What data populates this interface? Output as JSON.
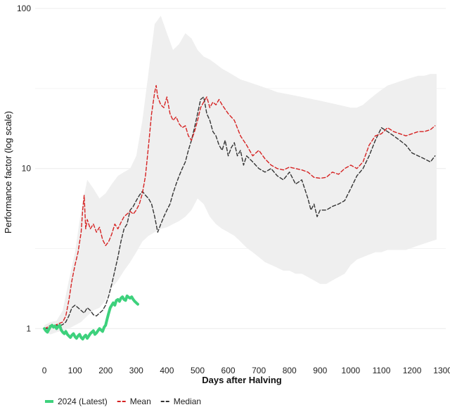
{
  "chart_data": {
    "type": "line",
    "xlabel": "Days after Halving",
    "ylabel": "Performance factor (log scale)",
    "xlim": [
      -30,
      1310
    ],
    "ylim": [
      0.65,
      100
    ],
    "yscale": "log",
    "x_ticks": [
      0,
      100,
      200,
      300,
      400,
      500,
      600,
      700,
      800,
      900,
      1000,
      1100,
      1200,
      1300
    ],
    "y_ticks": [
      1,
      10,
      100
    ],
    "grid": true,
    "legend_position": "bottom-left",
    "band": {
      "x": [
        0,
        20,
        40,
        60,
        80,
        100,
        120,
        140,
        160,
        180,
        200,
        220,
        240,
        260,
        280,
        300,
        320,
        340,
        360,
        380,
        400,
        420,
        440,
        460,
        480,
        500,
        520,
        540,
        560,
        580,
        600,
        620,
        640,
        660,
        680,
        700,
        720,
        740,
        760,
        780,
        800,
        820,
        840,
        860,
        880,
        900,
        920,
        940,
        960,
        980,
        1000,
        1020,
        1040,
        1060,
        1080,
        1100,
        1120,
        1140,
        1160,
        1180,
        1200,
        1220,
        1240,
        1260,
        1280
      ],
      "upper": [
        1.05,
        1.1,
        1.12,
        1.3,
        2.0,
        3.0,
        5.5,
        8.5,
        7.5,
        6.5,
        7.0,
        8.0,
        9.0,
        9.5,
        10.0,
        12.0,
        20.0,
        40.0,
        80.0,
        90.0,
        70.0,
        55.0,
        60.0,
        70.0,
        65.0,
        55.0,
        50.0,
        48.0,
        45.0,
        42.0,
        40.0,
        38.0,
        36.0,
        35.0,
        34.0,
        33.0,
        32.0,
        31.0,
        30.0,
        29.5,
        29.0,
        28.5,
        28.0,
        27.5,
        27.0,
        26.5,
        26.0,
        25.5,
        25.0,
        24.5,
        24.0,
        24.0,
        25.0,
        27.0,
        29.0,
        31.0,
        33.0,
        34.0,
        35.0,
        36.0,
        37.0,
        38.0,
        38.0,
        39.0,
        39.0
      ],
      "lower": [
        0.95,
        0.92,
        0.95,
        0.97,
        1.0,
        1.05,
        1.1,
        1.2,
        1.3,
        1.35,
        1.5,
        1.8,
        2.0,
        2.3,
        2.6,
        3.0,
        3.5,
        3.8,
        4.0,
        4.2,
        4.3,
        4.5,
        4.7,
        5.0,
        5.5,
        6.5,
        6.0,
        5.0,
        4.5,
        4.2,
        4.0,
        3.8,
        3.5,
        3.2,
        3.0,
        2.8,
        2.6,
        2.5,
        2.4,
        2.3,
        2.3,
        2.2,
        2.2,
        2.1,
        2.0,
        1.9,
        1.9,
        2.0,
        2.1,
        2.2,
        2.5,
        2.7,
        2.8,
        2.9,
        3.0,
        3.0,
        3.1,
        3.1,
        3.1,
        3.1,
        3.2,
        3.3,
        3.4,
        3.5,
        3.6
      ]
    },
    "series": [
      {
        "name": "2024 (Latest)",
        "color": "#3dd17c",
        "style": "solid",
        "x": [
          0,
          5,
          10,
          15,
          20,
          25,
          30,
          35,
          40,
          45,
          50,
          55,
          60,
          65,
          70,
          75,
          80,
          85,
          90,
          95,
          100,
          105,
          110,
          115,
          120,
          125,
          130,
          135,
          140,
          145,
          150,
          155,
          160,
          165,
          170,
          175,
          180,
          185,
          190,
          195,
          200,
          205,
          210,
          215,
          220,
          225,
          230,
          235,
          240,
          245,
          250,
          255,
          260,
          265,
          270,
          275,
          280,
          285,
          290,
          295,
          300,
          305
        ],
        "y": [
          1.0,
          0.97,
          0.95,
          0.99,
          1.03,
          1.05,
          1.02,
          1.04,
          1.0,
          1.03,
          1.05,
          0.98,
          0.95,
          0.93,
          0.96,
          0.92,
          0.9,
          0.88,
          0.91,
          0.93,
          0.89,
          0.87,
          0.9,
          0.92,
          0.88,
          0.86,
          0.89,
          0.91,
          0.87,
          0.9,
          0.93,
          0.95,
          0.97,
          0.92,
          0.94,
          0.97,
          1.0,
          0.98,
          0.96,
          1.02,
          1.05,
          1.15,
          1.25,
          1.35,
          1.4,
          1.45,
          1.4,
          1.5,
          1.52,
          1.48,
          1.55,
          1.58,
          1.52,
          1.5,
          1.6,
          1.57,
          1.55,
          1.58,
          1.52,
          1.48,
          1.45,
          1.42
        ]
      },
      {
        "name": "Mean",
        "color": "#d62222",
        "style": "dashed",
        "x": [
          0,
          10,
          20,
          30,
          40,
          50,
          60,
          70,
          80,
          90,
          100,
          110,
          120,
          125,
          130,
          135,
          140,
          150,
          160,
          170,
          180,
          190,
          200,
          210,
          220,
          230,
          240,
          250,
          260,
          270,
          280,
          290,
          300,
          310,
          320,
          330,
          340,
          350,
          360,
          365,
          370,
          380,
          390,
          400,
          410,
          420,
          430,
          440,
          450,
          460,
          470,
          480,
          490,
          500,
          510,
          520,
          530,
          540,
          550,
          560,
          570,
          580,
          600,
          620,
          640,
          660,
          680,
          700,
          720,
          740,
          760,
          780,
          800,
          820,
          840,
          860,
          880,
          900,
          920,
          940,
          960,
          980,
          1000,
          1020,
          1040,
          1060,
          1080,
          1100,
          1120,
          1140,
          1160,
          1180,
          1200,
          1220,
          1240,
          1260,
          1275
        ],
        "y": [
          1.0,
          1.02,
          1.05,
          1.03,
          1.06,
          1.08,
          1.1,
          1.2,
          1.5,
          2.0,
          2.5,
          3.0,
          4.0,
          5.5,
          6.8,
          4.2,
          4.8,
          4.2,
          4.5,
          4.0,
          4.3,
          3.6,
          3.3,
          3.5,
          3.9,
          4.5,
          4.2,
          4.6,
          5.0,
          5.2,
          5.4,
          5.2,
          5.5,
          6.0,
          7.0,
          9.0,
          14.0,
          22.0,
          30.0,
          33.0,
          28.0,
          25.0,
          24.0,
          28.0,
          22.0,
          20.0,
          21.0,
          19.0,
          18.0,
          18.5,
          16.0,
          15.0,
          17.0,
          20.0,
          24.0,
          26.0,
          28.0,
          24.0,
          26.0,
          25.0,
          27.0,
          25.0,
          22.0,
          20.0,
          16.0,
          14.0,
          12.0,
          13.0,
          11.5,
          10.5,
          10.0,
          9.8,
          10.2,
          10.0,
          9.8,
          9.5,
          8.8,
          8.7,
          8.8,
          9.5,
          9.2,
          10.0,
          10.5,
          10.0,
          11.0,
          14.0,
          16.0,
          16.5,
          18.0,
          17.0,
          16.5,
          16.0,
          16.5,
          17.0,
          17.0,
          17.5,
          18.5
        ]
      },
      {
        "name": "Median",
        "color": "#333333",
        "style": "dashed",
        "x": [
          0,
          10,
          20,
          30,
          40,
          50,
          60,
          70,
          80,
          90,
          100,
          110,
          120,
          130,
          140,
          150,
          160,
          170,
          180,
          190,
          200,
          210,
          220,
          230,
          240,
          250,
          260,
          270,
          280,
          290,
          300,
          310,
          320,
          330,
          340,
          350,
          360,
          370,
          380,
          390,
          400,
          410,
          420,
          430,
          440,
          450,
          460,
          470,
          480,
          490,
          500,
          510,
          520,
          530,
          540,
          550,
          560,
          570,
          580,
          590,
          600,
          610,
          620,
          630,
          640,
          650,
          660,
          680,
          700,
          720,
          740,
          760,
          780,
          800,
          820,
          840,
          860,
          870,
          880,
          890,
          900,
          920,
          940,
          960,
          980,
          1000,
          1020,
          1040,
          1060,
          1080,
          1100,
          1120,
          1140,
          1160,
          1180,
          1200,
          1220,
          1240,
          1260,
          1275
        ],
        "y": [
          1.0,
          1.0,
          1.02,
          1.04,
          1.05,
          1.04,
          1.06,
          1.1,
          1.2,
          1.35,
          1.4,
          1.35,
          1.3,
          1.25,
          1.35,
          1.3,
          1.22,
          1.2,
          1.25,
          1.3,
          1.4,
          1.6,
          1.9,
          2.3,
          2.8,
          3.5,
          4.2,
          4.5,
          5.5,
          5.8,
          6.3,
          6.8,
          7.2,
          6.8,
          6.5,
          6.0,
          5.0,
          4.0,
          4.5,
          5.0,
          5.5,
          6.0,
          7.0,
          8.0,
          9.0,
          10.0,
          11.0,
          13.0,
          15.0,
          18.0,
          22.0,
          27.0,
          28.0,
          22.0,
          20.0,
          17.0,
          16.0,
          14.0,
          13.0,
          15.0,
          12.0,
          13.5,
          14.5,
          12.0,
          13.0,
          10.5,
          12.0,
          11.0,
          10.0,
          9.5,
          10.0,
          9.0,
          8.5,
          9.5,
          8.0,
          8.5,
          6.5,
          5.5,
          6.0,
          5.0,
          5.5,
          5.5,
          5.8,
          6.0,
          6.3,
          7.5,
          9.0,
          10.0,
          12.0,
          15.0,
          18.0,
          17.0,
          16.0,
          15.0,
          14.0,
          12.5,
          12.0,
          11.5,
          11.0,
          12.0
        ]
      }
    ]
  }
}
